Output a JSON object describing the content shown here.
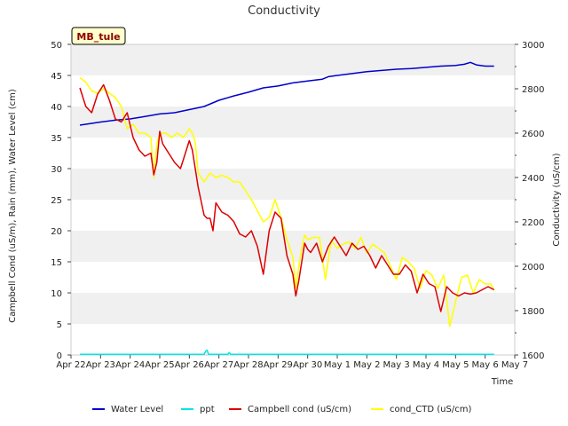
{
  "chart_data": {
    "type": "line",
    "title": "Conductivity",
    "xlabel": "Time",
    "ylabel_left": "Campbell Cond (uS/m), Rain (mm), Water Level (cm)",
    "ylabel_right": "Conductivity (uS/cm)",
    "annotation": "MB_tule",
    "x_tick_labels": [
      "Apr 22",
      "Apr 23",
      "Apr 24",
      "Apr 25",
      "Apr 26",
      "Apr 27",
      "Apr 28",
      "Apr 29",
      "Apr 30",
      "May 1",
      "May 2",
      "May 3",
      "May 4",
      "May 5",
      "May 6",
      "May 7"
    ],
    "xlim": [
      0,
      15
    ],
    "ylim_left": [
      0,
      50
    ],
    "ylim_right": [
      1600,
      3000
    ],
    "y_ticks_left": [
      0,
      5,
      10,
      15,
      20,
      25,
      30,
      35,
      40,
      45,
      50
    ],
    "y_ticks_right": [
      1600,
      1800,
      2000,
      2200,
      2400,
      2600,
      2800,
      3000
    ],
    "x_unit_note": "x values are days since Apr 22",
    "series": [
      {
        "name": "Water Level",
        "axis": "left",
        "color": "#0000cc",
        "x": [
          0.3,
          1.0,
          1.5,
          2.0,
          2.5,
          3.0,
          3.5,
          4.0,
          4.5,
          5.0,
          5.5,
          6.0,
          6.5,
          7.0,
          7.5,
          8.0,
          8.5,
          8.7,
          9.0,
          9.5,
          10.0,
          10.5,
          11.0,
          11.5,
          12.0,
          12.5,
          13.0,
          13.3,
          13.5,
          13.7,
          14.0,
          14.3
        ],
        "y": [
          37.0,
          37.5,
          37.8,
          38.0,
          38.4,
          38.8,
          39.0,
          39.5,
          40.0,
          41.0,
          41.7,
          42.3,
          43.0,
          43.3,
          43.8,
          44.1,
          44.4,
          44.8,
          45.0,
          45.3,
          45.6,
          45.8,
          46.0,
          46.1,
          46.3,
          46.5,
          46.6,
          46.8,
          47.1,
          46.7,
          46.5,
          46.5
        ]
      },
      {
        "name": "ppt",
        "axis": "left",
        "color": "#00e5e5",
        "x": [
          0.3,
          4.5,
          4.55,
          4.6,
          4.65,
          5.3,
          5.35,
          5.4,
          14.3
        ],
        "y": [
          0.1,
          0.1,
          0.6,
          0.8,
          0.1,
          0.1,
          0.4,
          0.1,
          0.1
        ]
      },
      {
        "name": "Campbell cond (uS/cm)",
        "axis": "left",
        "color": "#dd0000",
        "x": [
          0.3,
          0.5,
          0.7,
          0.9,
          1.1,
          1.3,
          1.5,
          1.7,
          1.9,
          2.1,
          2.3,
          2.5,
          2.7,
          2.8,
          2.9,
          3.0,
          3.1,
          3.3,
          3.5,
          3.7,
          3.8,
          4.0,
          4.1,
          4.2,
          4.3,
          4.5,
          4.6,
          4.7,
          4.8,
          4.9,
          5.1,
          5.3,
          5.5,
          5.7,
          5.9,
          6.1,
          6.3,
          6.5,
          6.7,
          6.9,
          7.1,
          7.3,
          7.5,
          7.6,
          7.7,
          7.8,
          7.9,
          8.0,
          8.1,
          8.3,
          8.5,
          8.7,
          8.9,
          9.1,
          9.3,
          9.5,
          9.7,
          9.9,
          10.1,
          10.3,
          10.5,
          10.7,
          10.9,
          11.1,
          11.3,
          11.5,
          11.7,
          11.9,
          12.1,
          12.3,
          12.5,
          12.7,
          12.9,
          13.1,
          13.3,
          13.5,
          13.7,
          13.9,
          14.1,
          14.3
        ],
        "y": [
          43.0,
          40.0,
          39.0,
          42.0,
          43.5,
          41.0,
          38.0,
          37.5,
          39.0,
          35.0,
          33.0,
          32.0,
          32.5,
          29.0,
          31.0,
          36.0,
          34.0,
          32.5,
          31.0,
          30.0,
          31.5,
          34.5,
          33.0,
          30.0,
          27.0,
          22.5,
          22.0,
          22.0,
          20.0,
          24.5,
          23.0,
          22.5,
          21.5,
          19.5,
          19.0,
          20.0,
          17.5,
          13.0,
          20.0,
          23.0,
          22.0,
          16.0,
          13.0,
          9.5,
          12.0,
          15.0,
          18.0,
          17.0,
          16.5,
          18.0,
          15.0,
          17.5,
          19.0,
          17.5,
          16.0,
          18.0,
          17.0,
          17.5,
          16.0,
          14.0,
          16.0,
          14.5,
          13.0,
          13.0,
          14.5,
          13.5,
          10.0,
          13.0,
          11.5,
          11.0,
          7.0,
          11.0,
          10.0,
          9.5,
          10.0,
          9.8,
          10.0,
          10.5,
          11.0,
          10.5
        ]
      },
      {
        "name": "cond_CTD (uS/cm)",
        "axis": "right",
        "color": "#ffff00",
        "x": [
          0.3,
          0.5,
          0.7,
          0.9,
          1.1,
          1.3,
          1.5,
          1.7,
          1.9,
          2.1,
          2.3,
          2.5,
          2.7,
          2.8,
          2.9,
          3.0,
          3.2,
          3.4,
          3.6,
          3.8,
          4.0,
          4.1,
          4.2,
          4.3,
          4.5,
          4.7,
          4.9,
          5.1,
          5.3,
          5.5,
          5.7,
          5.9,
          6.1,
          6.3,
          6.5,
          6.7,
          6.9,
          7.1,
          7.3,
          7.5,
          7.6,
          7.7,
          7.8,
          7.9,
          8.0,
          8.2,
          8.4,
          8.6,
          8.8,
          9.0,
          9.2,
          9.4,
          9.6,
          9.8,
          10.0,
          10.2,
          10.4,
          10.6,
          10.8,
          11.0,
          11.2,
          11.4,
          11.6,
          11.8,
          12.0,
          12.2,
          12.4,
          12.6,
          12.8,
          13.0,
          13.2,
          13.4,
          13.6,
          13.8,
          14.0,
          14.2,
          14.3
        ],
        "y": [
          2850,
          2830,
          2790,
          2780,
          2800,
          2780,
          2760,
          2720,
          2620,
          2640,
          2600,
          2600,
          2580,
          2400,
          2550,
          2600,
          2600,
          2580,
          2600,
          2580,
          2620,
          2600,
          2560,
          2420,
          2380,
          2420,
          2400,
          2410,
          2400,
          2380,
          2380,
          2340,
          2300,
          2250,
          2200,
          2220,
          2300,
          2220,
          2120,
          2040,
          1900,
          2000,
          2080,
          2140,
          2120,
          2130,
          2130,
          1940,
          2120,
          2080,
          2100,
          2110,
          2080,
          2130,
          2060,
          2100,
          2080,
          2060,
          2000,
          1940,
          2040,
          2020,
          1990,
          1900,
          1980,
          1960,
          1900,
          1960,
          1730,
          1840,
          1950,
          1960,
          1880,
          1940,
          1920,
          1920,
          1890
        ]
      }
    ],
    "legend_position": "bottom",
    "grid": "horizontal bands"
  }
}
